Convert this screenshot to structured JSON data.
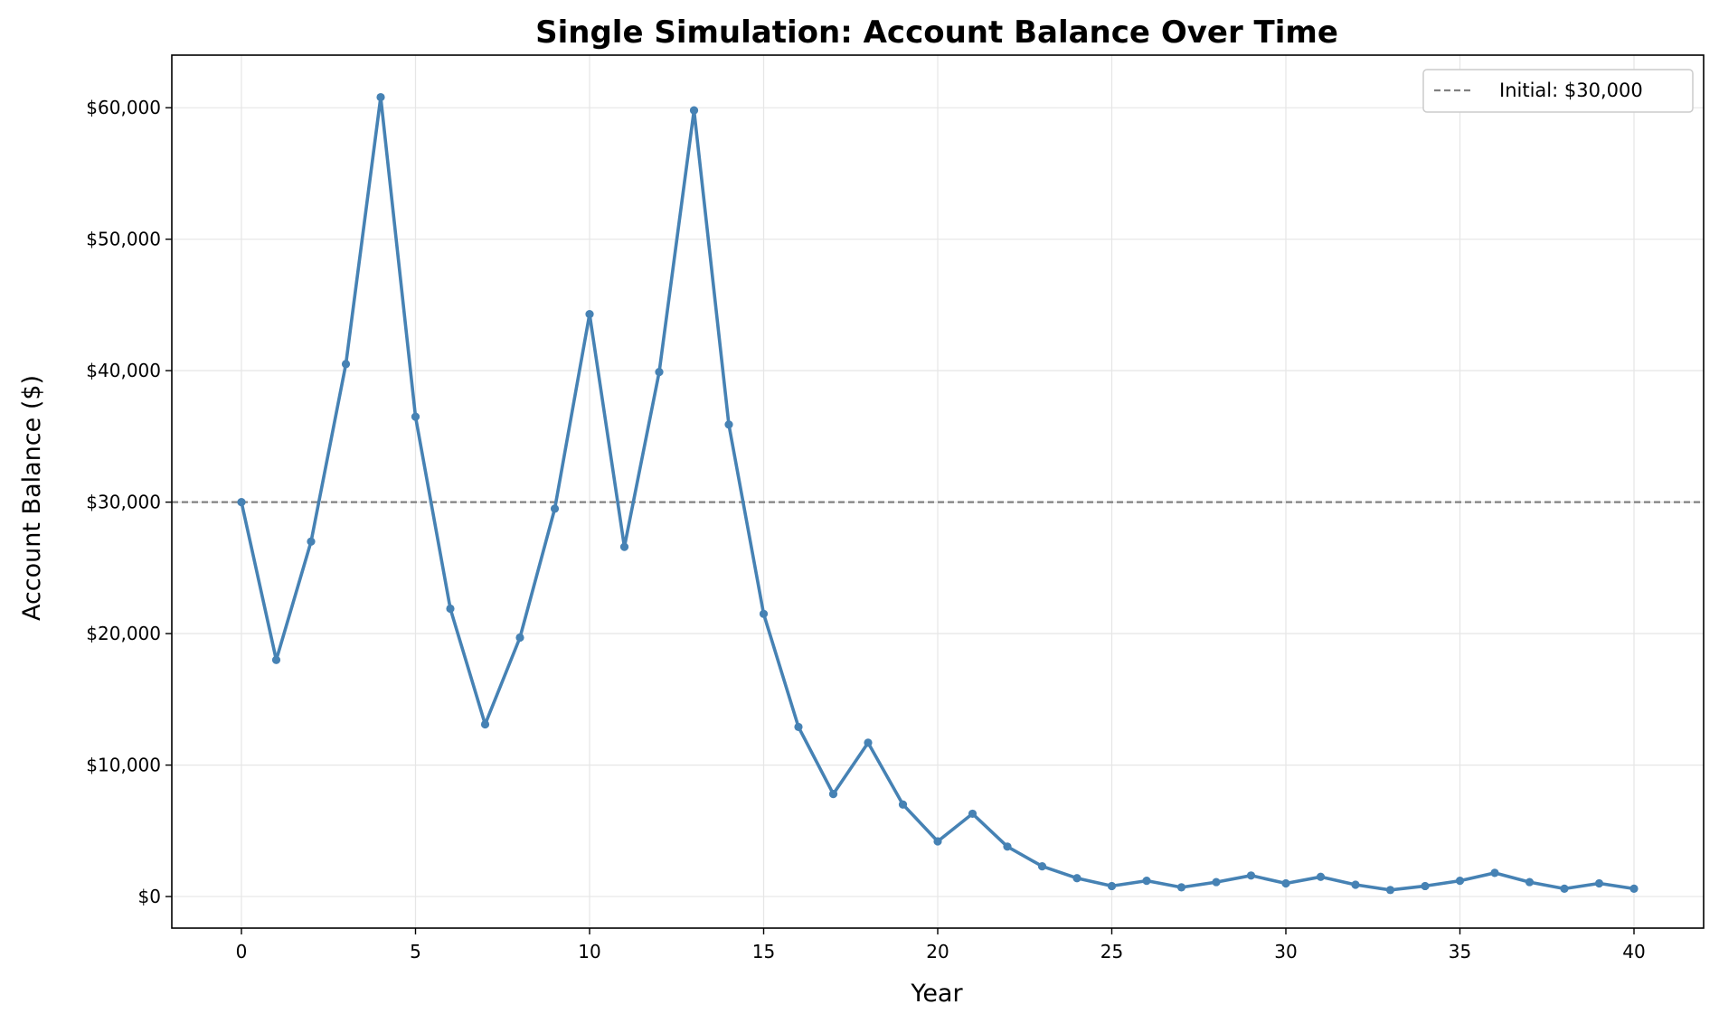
{
  "chart_data": {
    "type": "line",
    "title": "Single Simulation: Account Balance Over Time",
    "xlabel": "Year",
    "ylabel": "Account Balance ($)",
    "xlim": [
      -2,
      42
    ],
    "ylim": [
      -2400,
      64000
    ],
    "xticks": [
      0,
      5,
      10,
      15,
      20,
      25,
      30,
      35,
      40
    ],
    "xtick_labels": [
      "0",
      "5",
      "10",
      "15",
      "20",
      "25",
      "30",
      "35",
      "40"
    ],
    "yticks": [
      0,
      10000,
      20000,
      30000,
      40000,
      50000,
      60000
    ],
    "ytick_labels": [
      "$0",
      "$10,000",
      "$20,000",
      "$30,000",
      "$40,000",
      "$50,000",
      "$60,000"
    ],
    "grid": true,
    "legend_position": "top-right",
    "series": [
      {
        "color": "#4682b4",
        "x": [
          0,
          1,
          2,
          3,
          4,
          5,
          6,
          7,
          8,
          9,
          10,
          11,
          12,
          13,
          14,
          15,
          16,
          17,
          18,
          19,
          20,
          21,
          22,
          23,
          24,
          25,
          26,
          27,
          28,
          29,
          30,
          31,
          32,
          33,
          34,
          35,
          36,
          37,
          38,
          39,
          40
        ],
        "values": [
          30000,
          18000,
          27000,
          40500,
          60800,
          36500,
          21900,
          13100,
          19700,
          29500,
          44300,
          26600,
          39900,
          59800,
          35900,
          21500,
          12900,
          7800,
          11700,
          7000,
          4200,
          6300,
          3800,
          2300,
          1400,
          800,
          1200,
          700,
          1100,
          1600,
          1000,
          1500,
          900,
          500,
          800,
          1200,
          1800,
          1100,
          600,
          1000,
          600
        ]
      }
    ],
    "reference_line": {
      "label": "Initial: $30,000",
      "value": 30000,
      "color": "#808080",
      "style": "dashed"
    }
  }
}
